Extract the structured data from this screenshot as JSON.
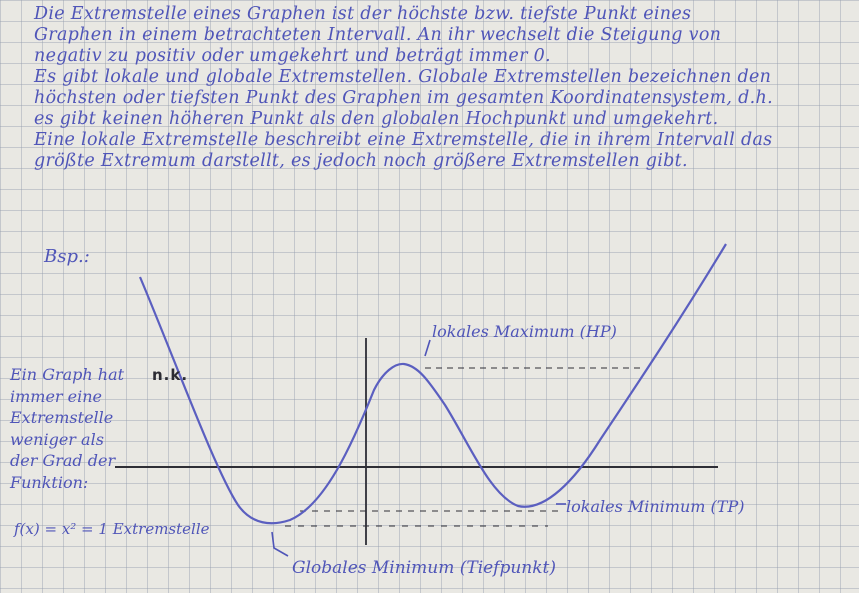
{
  "paragraph": {
    "lines": [
      "Die Extremstelle eines Graphen ist der höchste bzw. tiefste Punkt eines",
      "Graphen in einem betrachteten Intervall. An ihr wechselt die Steigung von",
      "negativ zu positiv oder umgekehrt und beträgt immer 0.",
      "Es gibt lokale und globale Extremstellen. Globale Extremstellen bezeichnen den",
      "höchsten oder tiefsten Punkt des Graphen im gesamten Koordinatensystem, d.h.",
      "es gibt keinen höheren Punkt als den globalen Hochpunkt und umgekehrt.",
      "Eine lokale Extremstelle beschreibt eine Extremstelle, die in ihrem Intervall das",
      "größte Extremum darstellt, es jedoch noch größere Extremstellen gibt."
    ]
  },
  "example_label": "Bsp.:",
  "side_note": {
    "lines": [
      "Ein Graph hat",
      "immer eine",
      "Extremstelle",
      "weniger als",
      "der Grad der",
      "Funktion:"
    ],
    "scribble": "n.k.",
    "formula": "f(x) = x² = 1 Extremstelle"
  },
  "annotations": {
    "local_max": "lokales Maximum (HP)",
    "local_min": "lokales Minimum (TP)",
    "global_min": "Globales Minimum (Tiefpunkt)"
  },
  "colors": {
    "ink": "#4f55b8",
    "axis": "#2e2e36",
    "paper": "#e9e8e3",
    "grid": "#969fae"
  }
}
